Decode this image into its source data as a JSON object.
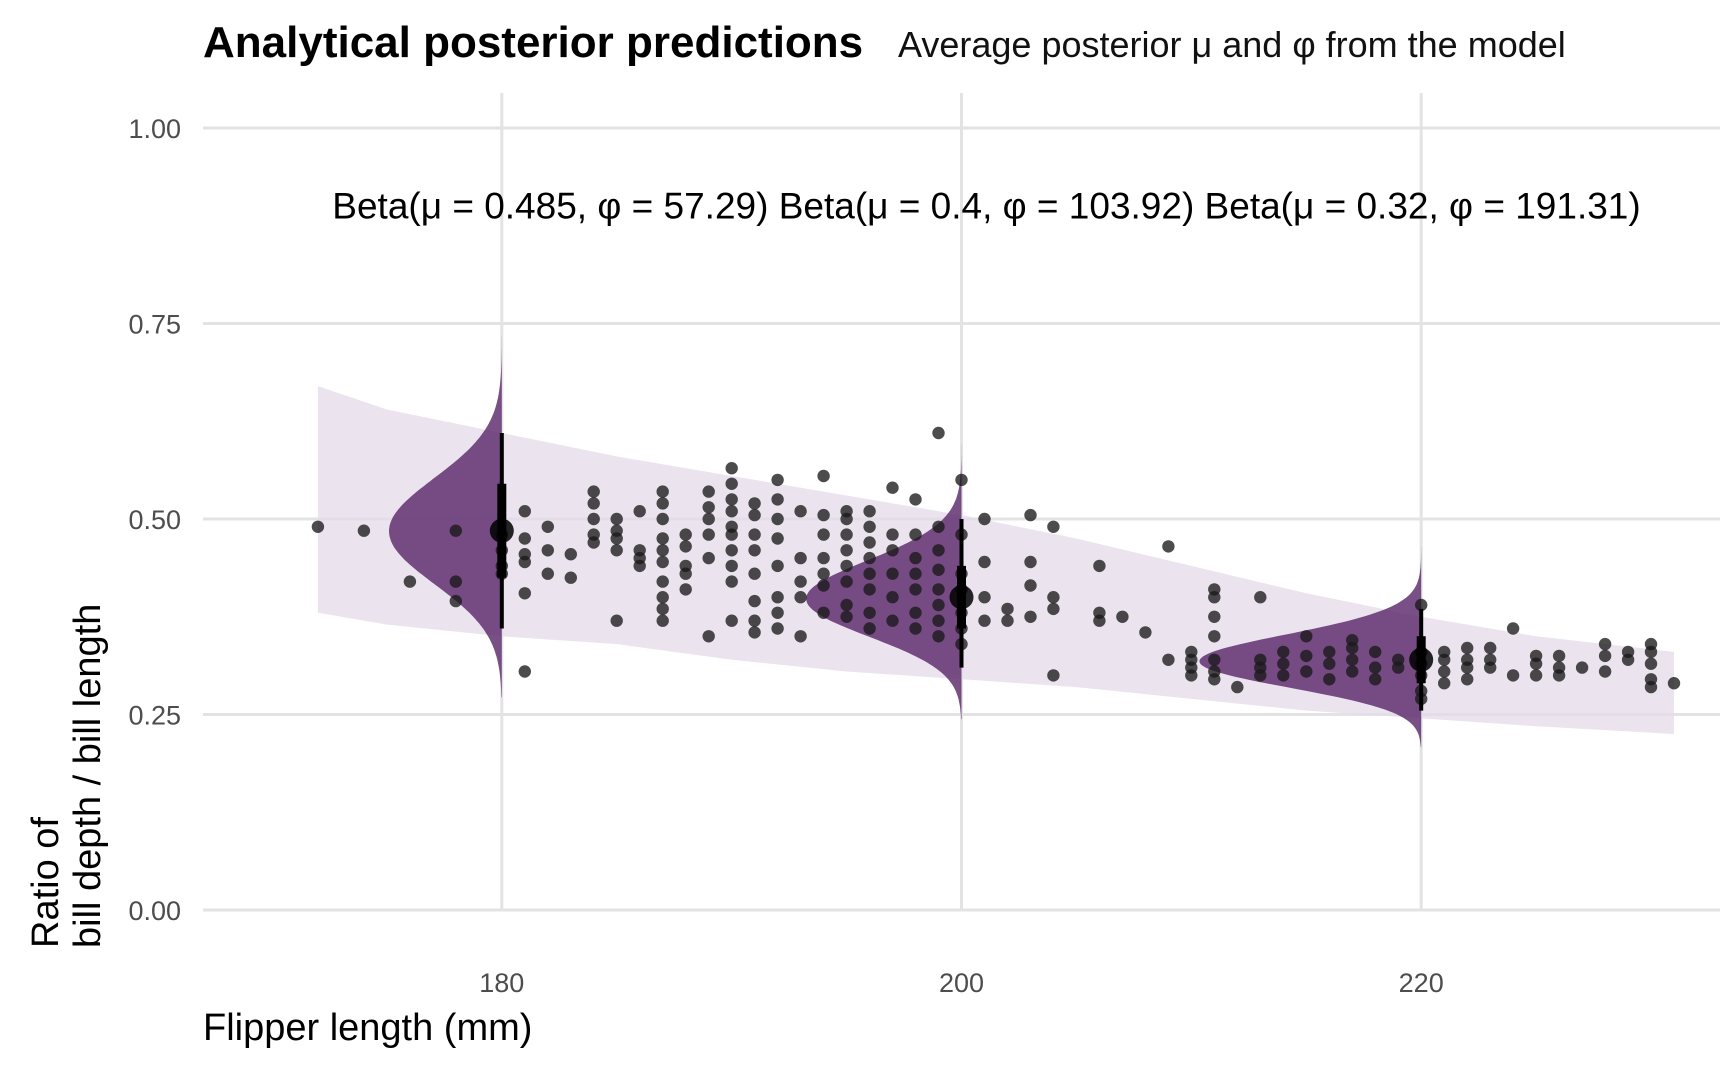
{
  "chart_data": {
    "type": "scatter",
    "title": "Analytical posterior predictions",
    "subtitle": "Average posterior μ and φ from the model",
    "xlabel": "Flipper length (mm)",
    "ylabel_lines": [
      "Ratio of",
      "bill depth / bill length"
    ],
    "xlim": [
      167,
      233
    ],
    "ylim": [
      0,
      1
    ],
    "x_ticks": [
      180,
      200,
      220
    ],
    "x_tick_labels": [
      "180",
      "200",
      "220"
    ],
    "y_ticks": [
      0,
      0.25,
      0.5,
      0.75,
      1
    ],
    "y_tick_labels": [
      "0.00",
      "0.25",
      "0.50",
      "0.75",
      "1.00"
    ],
    "grid": true,
    "colors": {
      "distribution": "#5c2a6b",
      "band": "#e4dbea",
      "points": "#1a1a1a",
      "grid": "#e3e3e3"
    },
    "prediction_band": {
      "x": [
        172,
        175,
        180,
        185,
        190,
        195,
        200,
        205,
        210,
        215,
        220,
        225,
        231
      ],
      "lower": [
        0.38,
        0.365,
        0.35,
        0.34,
        0.32,
        0.305,
        0.295,
        0.285,
        0.27,
        0.255,
        0.245,
        0.235,
        0.225
      ],
      "upper": [
        0.67,
        0.64,
        0.61,
        0.58,
        0.555,
        0.53,
        0.505,
        0.475,
        0.44,
        0.405,
        0.375,
        0.35,
        0.33
      ]
    },
    "distributions": [
      {
        "x": 180,
        "mu": 0.485,
        "phi": 57.29,
        "label": "Beta(μ = 0.485, φ = 57.29)",
        "interval_66": [
          0.425,
          0.545
        ],
        "interval_95": [
          0.36,
          0.61
        ]
      },
      {
        "x": 200,
        "mu": 0.4,
        "phi": 103.92,
        "label": "Beta(μ = 0.4, φ = 103.92)",
        "interval_66": [
          0.36,
          0.44
        ],
        "interval_95": [
          0.31,
          0.5
        ]
      },
      {
        "x": 220,
        "mu": 0.32,
        "phi": 191.31,
        "label": "Beta(μ = 0.32, φ = 191.31)",
        "interval_66": [
          0.29,
          0.35
        ],
        "interval_95": [
          0.255,
          0.385
        ]
      }
    ],
    "label_y": 0.901,
    "points": [
      [
        172,
        0.49
      ],
      [
        174,
        0.485
      ],
      [
        176,
        0.42
      ],
      [
        178,
        0.485
      ],
      [
        178,
        0.42
      ],
      [
        178,
        0.395
      ],
      [
        180,
        0.48
      ],
      [
        180,
        0.46
      ],
      [
        180,
        0.44
      ],
      [
        180,
        0.43
      ],
      [
        181,
        0.51
      ],
      [
        181,
        0.475
      ],
      [
        181,
        0.455
      ],
      [
        181,
        0.445
      ],
      [
        181,
        0.405
      ],
      [
        181,
        0.305
      ],
      [
        182,
        0.49
      ],
      [
        182,
        0.46
      ],
      [
        182,
        0.43
      ],
      [
        183,
        0.455
      ],
      [
        183,
        0.425
      ],
      [
        184,
        0.535
      ],
      [
        184,
        0.52
      ],
      [
        184,
        0.5
      ],
      [
        184,
        0.48
      ],
      [
        184,
        0.47
      ],
      [
        185,
        0.5
      ],
      [
        185,
        0.485
      ],
      [
        185,
        0.475
      ],
      [
        185,
        0.46
      ],
      [
        185,
        0.37
      ],
      [
        186,
        0.51
      ],
      [
        186,
        0.46
      ],
      [
        186,
        0.45
      ],
      [
        186,
        0.44
      ],
      [
        187,
        0.535
      ],
      [
        187,
        0.52
      ],
      [
        187,
        0.5
      ],
      [
        187,
        0.475
      ],
      [
        187,
        0.46
      ],
      [
        187,
        0.445
      ],
      [
        187,
        0.42
      ],
      [
        187,
        0.4
      ],
      [
        187,
        0.385
      ],
      [
        187,
        0.37
      ],
      [
        188,
        0.48
      ],
      [
        188,
        0.465
      ],
      [
        188,
        0.44
      ],
      [
        188,
        0.43
      ],
      [
        188,
        0.41
      ],
      [
        189,
        0.535
      ],
      [
        189,
        0.515
      ],
      [
        189,
        0.5
      ],
      [
        189,
        0.48
      ],
      [
        189,
        0.45
      ],
      [
        189,
        0.35
      ],
      [
        190,
        0.565
      ],
      [
        190,
        0.545
      ],
      [
        190,
        0.525
      ],
      [
        190,
        0.51
      ],
      [
        190,
        0.49
      ],
      [
        190,
        0.48
      ],
      [
        190,
        0.46
      ],
      [
        190,
        0.44
      ],
      [
        190,
        0.42
      ],
      [
        190,
        0.37
      ],
      [
        191,
        0.52
      ],
      [
        191,
        0.505
      ],
      [
        191,
        0.48
      ],
      [
        191,
        0.46
      ],
      [
        191,
        0.43
      ],
      [
        191,
        0.395
      ],
      [
        191,
        0.37
      ],
      [
        191,
        0.355
      ],
      [
        192,
        0.55
      ],
      [
        192,
        0.525
      ],
      [
        192,
        0.5
      ],
      [
        192,
        0.475
      ],
      [
        192,
        0.44
      ],
      [
        192,
        0.4
      ],
      [
        192,
        0.38
      ],
      [
        192,
        0.36
      ],
      [
        193,
        0.51
      ],
      [
        193,
        0.45
      ],
      [
        193,
        0.42
      ],
      [
        193,
        0.4
      ],
      [
        193,
        0.35
      ],
      [
        194,
        0.555
      ],
      [
        194,
        0.505
      ],
      [
        194,
        0.48
      ],
      [
        194,
        0.45
      ],
      [
        194,
        0.43
      ],
      [
        194,
        0.415
      ],
      [
        194,
        0.38
      ],
      [
        195,
        0.51
      ],
      [
        195,
        0.5
      ],
      [
        195,
        0.48
      ],
      [
        195,
        0.46
      ],
      [
        195,
        0.44
      ],
      [
        195,
        0.42
      ],
      [
        195,
        0.39
      ],
      [
        195,
        0.375
      ],
      [
        196,
        0.51
      ],
      [
        196,
        0.49
      ],
      [
        196,
        0.47
      ],
      [
        196,
        0.45
      ],
      [
        196,
        0.43
      ],
      [
        196,
        0.41
      ],
      [
        196,
        0.38
      ],
      [
        196,
        0.36
      ],
      [
        197,
        0.54
      ],
      [
        197,
        0.48
      ],
      [
        197,
        0.46
      ],
      [
        197,
        0.43
      ],
      [
        197,
        0.4
      ],
      [
        197,
        0.37
      ],
      [
        198,
        0.525
      ],
      [
        198,
        0.48
      ],
      [
        198,
        0.45
      ],
      [
        198,
        0.43
      ],
      [
        198,
        0.41
      ],
      [
        198,
        0.38
      ],
      [
        198,
        0.36
      ],
      [
        199,
        0.61
      ],
      [
        199,
        0.49
      ],
      [
        199,
        0.46
      ],
      [
        199,
        0.435
      ],
      [
        199,
        0.41
      ],
      [
        199,
        0.39
      ],
      [
        199,
        0.37
      ],
      [
        199,
        0.35
      ],
      [
        200,
        0.55
      ],
      [
        200,
        0.48
      ],
      [
        200,
        0.43
      ],
      [
        200,
        0.41
      ],
      [
        200,
        0.38
      ],
      [
        200,
        0.36
      ],
      [
        200,
        0.34
      ],
      [
        201,
        0.5
      ],
      [
        201,
        0.445
      ],
      [
        201,
        0.4
      ],
      [
        201,
        0.37
      ],
      [
        202,
        0.385
      ],
      [
        202,
        0.37
      ],
      [
        203,
        0.505
      ],
      [
        203,
        0.445
      ],
      [
        203,
        0.415
      ],
      [
        203,
        0.375
      ],
      [
        204,
        0.49
      ],
      [
        204,
        0.4
      ],
      [
        204,
        0.385
      ],
      [
        204,
        0.3
      ],
      [
        206,
        0.44
      ],
      [
        206,
        0.38
      ],
      [
        206,
        0.37
      ],
      [
        207,
        0.375
      ],
      [
        208,
        0.355
      ],
      [
        209,
        0.465
      ],
      [
        209,
        0.32
      ],
      [
        210,
        0.33
      ],
      [
        210,
        0.32
      ],
      [
        210,
        0.31
      ],
      [
        210,
        0.3
      ],
      [
        211,
        0.41
      ],
      [
        211,
        0.4
      ],
      [
        211,
        0.375
      ],
      [
        211,
        0.35
      ],
      [
        211,
        0.32
      ],
      [
        211,
        0.305
      ],
      [
        211,
        0.295
      ],
      [
        212,
        0.285
      ],
      [
        213,
        0.4
      ],
      [
        213,
        0.32
      ],
      [
        213,
        0.31
      ],
      [
        213,
        0.3
      ],
      [
        214,
        0.33
      ],
      [
        214,
        0.315
      ],
      [
        214,
        0.3
      ],
      [
        215,
        0.35
      ],
      [
        215,
        0.325
      ],
      [
        215,
        0.305
      ],
      [
        216,
        0.33
      ],
      [
        216,
        0.315
      ],
      [
        216,
        0.295
      ],
      [
        217,
        0.345
      ],
      [
        217,
        0.335
      ],
      [
        217,
        0.32
      ],
      [
        217,
        0.305
      ],
      [
        218,
        0.33
      ],
      [
        218,
        0.31
      ],
      [
        218,
        0.295
      ],
      [
        219,
        0.32
      ],
      [
        219,
        0.31
      ],
      [
        220,
        0.33
      ],
      [
        220,
        0.315
      ],
      [
        220,
        0.3
      ],
      [
        220,
        0.28
      ],
      [
        220,
        0.27
      ],
      [
        220,
        0.39
      ],
      [
        221,
        0.33
      ],
      [
        221,
        0.32
      ],
      [
        221,
        0.305
      ],
      [
        221,
        0.29
      ],
      [
        222,
        0.335
      ],
      [
        222,
        0.32
      ],
      [
        222,
        0.31
      ],
      [
        222,
        0.295
      ],
      [
        223,
        0.335
      ],
      [
        223,
        0.32
      ],
      [
        223,
        0.31
      ],
      [
        224,
        0.36
      ],
      [
        224,
        0.3
      ],
      [
        225,
        0.325
      ],
      [
        225,
        0.315
      ],
      [
        225,
        0.3
      ],
      [
        226,
        0.325
      ],
      [
        226,
        0.31
      ],
      [
        226,
        0.3
      ],
      [
        227,
        0.31
      ],
      [
        228,
        0.34
      ],
      [
        228,
        0.325
      ],
      [
        228,
        0.305
      ],
      [
        229,
        0.33
      ],
      [
        229,
        0.32
      ],
      [
        230,
        0.34
      ],
      [
        230,
        0.33
      ],
      [
        230,
        0.315
      ],
      [
        230,
        0.295
      ],
      [
        230,
        0.285
      ],
      [
        231,
        0.29
      ]
    ]
  }
}
